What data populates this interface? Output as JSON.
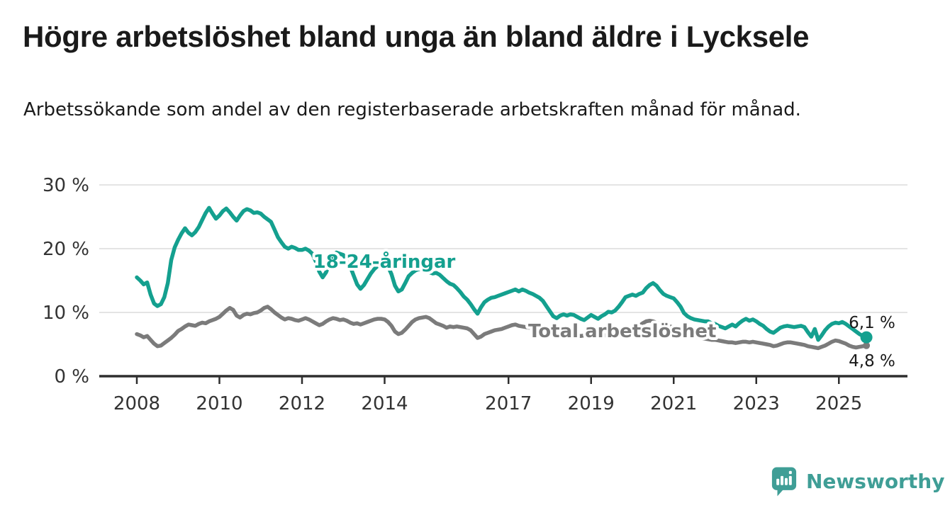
{
  "header": {
    "title": "Högre arbetslöshet bland unga än bland äldre i Lycksele",
    "subtitle": "Arbetssökande som andel av den registerbaserade arbetskraften månad för månad."
  },
  "chart_data": {
    "type": "line",
    "unit": "%",
    "grid": true,
    "x": {
      "frequency": "monthly",
      "start": "2008-01",
      "end": "2025-09",
      "tick_years": [
        2008,
        2010,
        2012,
        2014,
        2017,
        2019,
        2021,
        2023,
        2025
      ],
      "tick_labels": [
        "2008",
        "2010",
        "2012",
        "2014",
        "2017",
        "2019",
        "2021",
        "2023",
        "2025"
      ]
    },
    "y": {
      "min": 0,
      "max": 30,
      "tick_values": [
        30,
        20,
        10,
        0
      ],
      "tick_labels": [
        "30 %",
        "20 %",
        "10 %",
        "0 %"
      ]
    },
    "series": [
      {
        "name": "Total arbetslöshet",
        "color": "#7b7b7b",
        "stroke_width": 5.5,
        "end_dot_radius": 5,
        "end_value": 4.8,
        "values": [
          6.6,
          6.4,
          6.1,
          6.3,
          5.7,
          5.1,
          4.7,
          4.8,
          5.2,
          5.6,
          6.0,
          6.5,
          7.1,
          7.4,
          7.8,
          8.1,
          8.0,
          7.9,
          8.2,
          8.4,
          8.3,
          8.6,
          8.8,
          9.0,
          9.3,
          9.8,
          10.3,
          10.7,
          10.4,
          9.5,
          9.2,
          9.6,
          9.8,
          9.7,
          9.9,
          10.0,
          10.3,
          10.7,
          10.9,
          10.5,
          10.0,
          9.6,
          9.2,
          8.9,
          9.1,
          9.0,
          8.8,
          8.7,
          8.9,
          9.1,
          8.9,
          8.6,
          8.3,
          8.0,
          8.2,
          8.6,
          8.9,
          9.1,
          9.0,
          8.8,
          8.9,
          8.7,
          8.4,
          8.2,
          8.3,
          8.1,
          8.3,
          8.5,
          8.7,
          8.9,
          9.0,
          9.0,
          8.9,
          8.5,
          7.9,
          7.0,
          6.6,
          6.8,
          7.3,
          7.9,
          8.5,
          8.9,
          9.1,
          9.2,
          9.3,
          9.1,
          8.7,
          8.3,
          8.1,
          7.9,
          7.6,
          7.8,
          7.7,
          7.8,
          7.7,
          7.6,
          7.5,
          7.2,
          6.6,
          6.0,
          6.2,
          6.6,
          6.8,
          7.0,
          7.2,
          7.3,
          7.4,
          7.6,
          7.8,
          8.0,
          8.1,
          7.9,
          7.8,
          7.7,
          7.6,
          7.7,
          7.6,
          7.5,
          7.4,
          7.3,
          7.2,
          7.0,
          6.9,
          6.8,
          6.7,
          6.5,
          6.4,
          6.5,
          6.4,
          6.3,
          6.4,
          6.5,
          6.6,
          6.5,
          6.4,
          6.3,
          6.4,
          6.5,
          6.6,
          6.5,
          6.6,
          6.8,
          7.0,
          7.2,
          7.4,
          7.6,
          7.9,
          8.3,
          8.6,
          8.7,
          8.6,
          8.4,
          8.2,
          8.0,
          7.9,
          7.8,
          7.6,
          7.4,
          7.2,
          6.9,
          6.7,
          6.5,
          6.3,
          6.1,
          6.0,
          5.9,
          5.8,
          5.7,
          5.7,
          5.6,
          5.5,
          5.4,
          5.3,
          5.3,
          5.2,
          5.3,
          5.4,
          5.4,
          5.3,
          5.4,
          5.3,
          5.2,
          5.1,
          5.0,
          4.9,
          4.7,
          4.8,
          5.0,
          5.2,
          5.3,
          5.3,
          5.2,
          5.1,
          5.0,
          4.9,
          4.7,
          4.6,
          4.5,
          4.4,
          4.6,
          4.8,
          5.1,
          5.4,
          5.6,
          5.5,
          5.3,
          5.1,
          4.8,
          4.6,
          4.5,
          4.6,
          4.7,
          4.8
        ]
      },
      {
        "name": "18-24-åringar",
        "color": "#14a08f",
        "stroke_width": 5.5,
        "end_dot_radius": 8.5,
        "end_value": 6.1,
        "values": [
          15.5,
          15.0,
          14.4,
          14.7,
          12.8,
          11.4,
          11.0,
          11.3,
          12.4,
          14.6,
          18.2,
          20.2,
          21.4,
          22.4,
          23.2,
          22.5,
          22.1,
          22.6,
          23.4,
          24.5,
          25.6,
          26.4,
          25.5,
          24.7,
          25.2,
          25.9,
          26.3,
          25.7,
          25.0,
          24.4,
          25.2,
          25.9,
          26.2,
          26.0,
          25.6,
          25.7,
          25.5,
          25.0,
          24.6,
          24.2,
          23.0,
          21.8,
          21.0,
          20.3,
          20.0,
          20.3,
          20.1,
          19.8,
          19.8,
          20.0,
          19.7,
          19.2,
          18.0,
          16.4,
          15.5,
          16.3,
          17.7,
          18.9,
          19.4,
          19.2,
          19.0,
          18.2,
          17.2,
          15.8,
          14.4,
          13.7,
          14.3,
          15.2,
          16.1,
          16.8,
          17.3,
          17.6,
          17.8,
          17.2,
          16.0,
          14.2,
          13.3,
          13.6,
          14.6,
          15.7,
          16.2,
          16.6,
          16.8,
          16.7,
          16.6,
          16.3,
          16.1,
          16.2,
          15.9,
          15.4,
          14.9,
          14.5,
          14.3,
          13.8,
          13.2,
          12.5,
          12.0,
          11.3,
          10.5,
          9.8,
          10.8,
          11.6,
          12.0,
          12.3,
          12.4,
          12.6,
          12.8,
          13.0,
          13.2,
          13.4,
          13.6,
          13.3,
          13.6,
          13.4,
          13.1,
          12.9,
          12.6,
          12.3,
          11.8,
          11.0,
          10.2,
          9.4,
          9.1,
          9.5,
          9.7,
          9.5,
          9.7,
          9.6,
          9.3,
          9.0,
          8.8,
          9.2,
          9.6,
          9.3,
          9.0,
          9.4,
          9.7,
          10.1,
          10.0,
          10.3,
          10.9,
          11.6,
          12.4,
          12.6,
          12.8,
          12.6,
          12.9,
          13.1,
          13.8,
          14.3,
          14.6,
          14.2,
          13.5,
          12.9,
          12.6,
          12.4,
          12.2,
          11.6,
          10.9,
          9.9,
          9.4,
          9.1,
          8.9,
          8.8,
          8.7,
          8.6,
          8.6,
          8.3,
          8.2,
          7.9,
          7.7,
          7.5,
          7.8,
          8.1,
          7.8,
          8.3,
          8.7,
          9.0,
          8.7,
          8.9,
          8.6,
          8.2,
          7.9,
          7.4,
          7.0,
          6.8,
          7.2,
          7.6,
          7.8,
          7.9,
          7.8,
          7.7,
          7.8,
          7.9,
          7.7,
          6.9,
          6.2,
          7.4,
          5.7,
          6.4,
          7.2,
          7.8,
          8.2,
          8.4,
          8.3,
          8.5,
          8.2,
          7.8,
          7.4,
          7.0,
          6.6,
          6.3,
          6.1
        ]
      }
    ],
    "annotations": {
      "series_labels": [
        {
          "text": "18-24-åringar",
          "color": "#14a08f",
          "x": 542,
          "y": 378,
          "anchor": "middle",
          "font_size": 26
        },
        {
          "text": "Total arbetslöshet",
          "color": "#7b7b7b",
          "x": 745,
          "y": 476,
          "anchor": "start",
          "font_size": 26
        }
      ],
      "end_labels": [
        {
          "text": "6,1 %",
          "x": 1230,
          "y": 463,
          "anchor": "middle",
          "color": "#1a1a1a",
          "font_size": 23
        },
        {
          "text": "4,8 %",
          "x": 1230,
          "y": 517,
          "anchor": "middle",
          "color": "#1a1a1a",
          "font_size": 23
        }
      ]
    },
    "legend_position": "on-chart-labels"
  },
  "footer": {
    "brand_name": "Newsworthy",
    "brand_color": "#3f9e96"
  }
}
